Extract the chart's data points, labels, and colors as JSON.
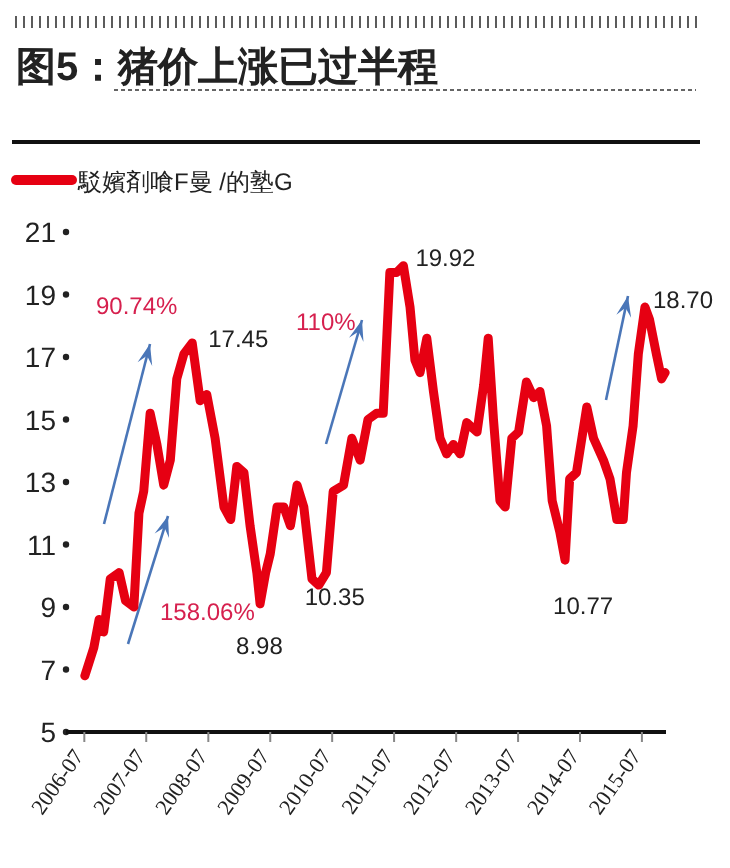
{
  "chart_data": {
    "type": "line",
    "title": "图5：猪价上涨已过半程",
    "legend": "top left",
    "grid": false,
    "marker": "none",
    "line_style": "solid",
    "xlim": [
      "2006-03-15",
      "2015-11-20"
    ],
    "xticks": [
      "2006-07",
      "2007-07",
      "2008-07",
      "2009-07",
      "2010-07",
      "2011-07",
      "2012-07",
      "2013-07",
      "2014-07",
      "2015-07"
    ],
    "ylim": [
      5,
      21
    ],
    "yticks": [
      5,
      7,
      9,
      11,
      13,
      15,
      17,
      19,
      21
    ],
    "series": [
      {
        "name": "駁嬪剤喰F曼  /的塾G",
        "color": "#e60012",
        "x": [
          "2006-07-04",
          "2006-08-26",
          "2006-09-26",
          "2006-10-23",
          "2006-12-01",
          "2007-01-22",
          "2007-03-01",
          "2007-04-19",
          "2007-05-19",
          "2007-06-16",
          "2007-07-24",
          "2007-09-02",
          "2007-10-12",
          "2007-11-20",
          "2007-12-28",
          "2008-02-08",
          "2008-03-28",
          "2008-05-14",
          "2008-06-22",
          "2008-08-10",
          "2008-10-01",
          "2008-11-10",
          "2008-12-16",
          "2009-01-27",
          "2009-03-04",
          "2009-04-13",
          "2009-05-02",
          "2009-06-04",
          "2009-07-01",
          "2009-08-10",
          "2009-09-19",
          "2009-10-28",
          "2009-12-06",
          "2010-01-15",
          "2010-03-04",
          "2010-04-13",
          "2010-05-28",
          "2010-07-07",
          "2010-09-06",
          "2010-10-25",
          "2010-12-13",
          "2011-01-28",
          "2011-03-19",
          "2011-04-28",
          "2011-06-06",
          "2011-07-15",
          "2011-08-25",
          "2011-10-03",
          "2011-11-01",
          "2011-12-01",
          "2012-01-10",
          "2012-02-18",
          "2012-03-28",
          "2012-05-06",
          "2012-06-15",
          "2012-07-24",
          "2012-09-01",
          "2012-11-01",
          "2012-12-10",
          "2013-01-06",
          "2013-02-06",
          "2013-03-16",
          "2013-04-16",
          "2013-05-25",
          "2013-07-04",
          "2013-08-19",
          "2013-10-01",
          "2013-11-07",
          "2013-12-16",
          "2014-01-18",
          "2014-03-04",
          "2014-04-04",
          "2014-05-01",
          "2014-06-10",
          "2014-08-10",
          "2014-09-19",
          "2014-11-16",
          "2014-12-25",
          "2015-02-03",
          "2015-03-13",
          "2015-04-01",
          "2015-05-10",
          "2015-06-10",
          "2015-07-19",
          "2015-08-15",
          "2015-09-24",
          "2015-10-25",
          "2015-11-15"
        ],
        "values": [
          6.8,
          7.7,
          8.6,
          8.2,
          9.9,
          10.1,
          9.2,
          9.0,
          12.0,
          12.7,
          15.2,
          14.2,
          12.9,
          13.7,
          16.3,
          17.1,
          17.45,
          15.6,
          15.8,
          14.4,
          12.2,
          11.8,
          13.5,
          13.3,
          11.6,
          10.1,
          9.1,
          10.1,
          10.7,
          12.2,
          12.2,
          11.6,
          12.9,
          12.2,
          9.9,
          9.7,
          10.1,
          12.7,
          12.9,
          14.4,
          13.7,
          15.0,
          15.2,
          15.2,
          19.7,
          19.7,
          19.92,
          18.6,
          16.9,
          16.5,
          17.6,
          15.9,
          14.4,
          13.9,
          14.2,
          13.9,
          14.9,
          14.6,
          16.1,
          17.6,
          15.0,
          12.4,
          12.2,
          14.4,
          14.6,
          16.2,
          15.7,
          15.9,
          14.8,
          12.4,
          11.4,
          10.5,
          13.1,
          13.3,
          15.4,
          14.4,
          13.7,
          13.1,
          11.8,
          11.8,
          13.3,
          14.8,
          17.1,
          18.6,
          18.2,
          17.1,
          16.3,
          16.5
        ]
      }
    ],
    "annotations": [
      "90.74%",
      "158.06%",
      "110%",
      {
        "text": "17.45",
        "x": "2008-03-28",
        "y": 17.45
      },
      {
        "text": "8.98",
        "x": "2009-05-02",
        "y": 8.98
      },
      {
        "text": "10.35",
        "x": "2010-04-13",
        "y": 10.35
      },
      {
        "text": "19.92",
        "x": "2011-08-25",
        "y": 19.92
      },
      {
        "text": "10.77",
        "x": "2014-04-04",
        "y": 10.77
      },
      {
        "text": "18.70",
        "x": "2015-07-19",
        "y": 18.7
      }
    ]
  }
}
